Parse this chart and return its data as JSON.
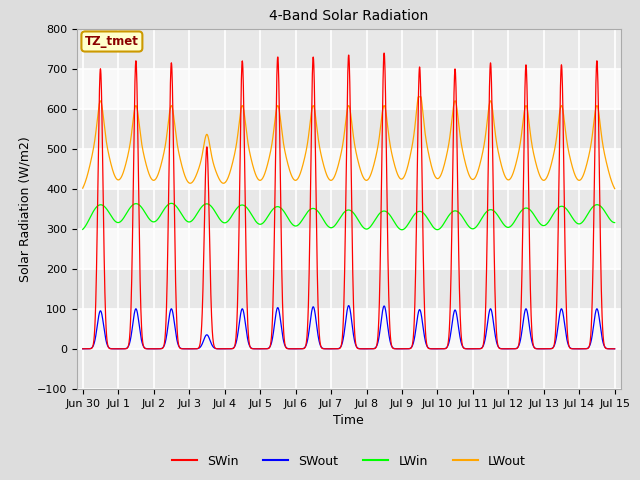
{
  "title": "4-Band Solar Radiation",
  "xlabel": "Time",
  "ylabel": "Solar Radiation (W/m2)",
  "annotation": "TZ_tmet",
  "ylim": [
    -100,
    800
  ],
  "legend_entries": [
    "SWin",
    "SWout",
    "LWin",
    "LWout"
  ],
  "line_colors": [
    "red",
    "blue",
    "#00ff00",
    "orange"
  ],
  "bg_color": "#dddddd",
  "plot_bg_color": "#f2f2f2",
  "grid_color": "#cccccc",
  "points_per_day": 144,
  "SWin_peaks": [
    700,
    720,
    715,
    505,
    720,
    730,
    730,
    735,
    740,
    705,
    700,
    715,
    710,
    710,
    720
  ],
  "SWout_peaks": [
    95,
    100,
    100,
    35,
    100,
    103,
    105,
    108,
    107,
    98,
    97,
    100,
    100,
    100,
    100
  ],
  "LWin_base": 330,
  "LWout_base": 390,
  "LWout_day_peak": 160,
  "annotation_color": "#8b0000",
  "annotation_bg": "#ffffcc",
  "annotation_border": "#cc9900"
}
